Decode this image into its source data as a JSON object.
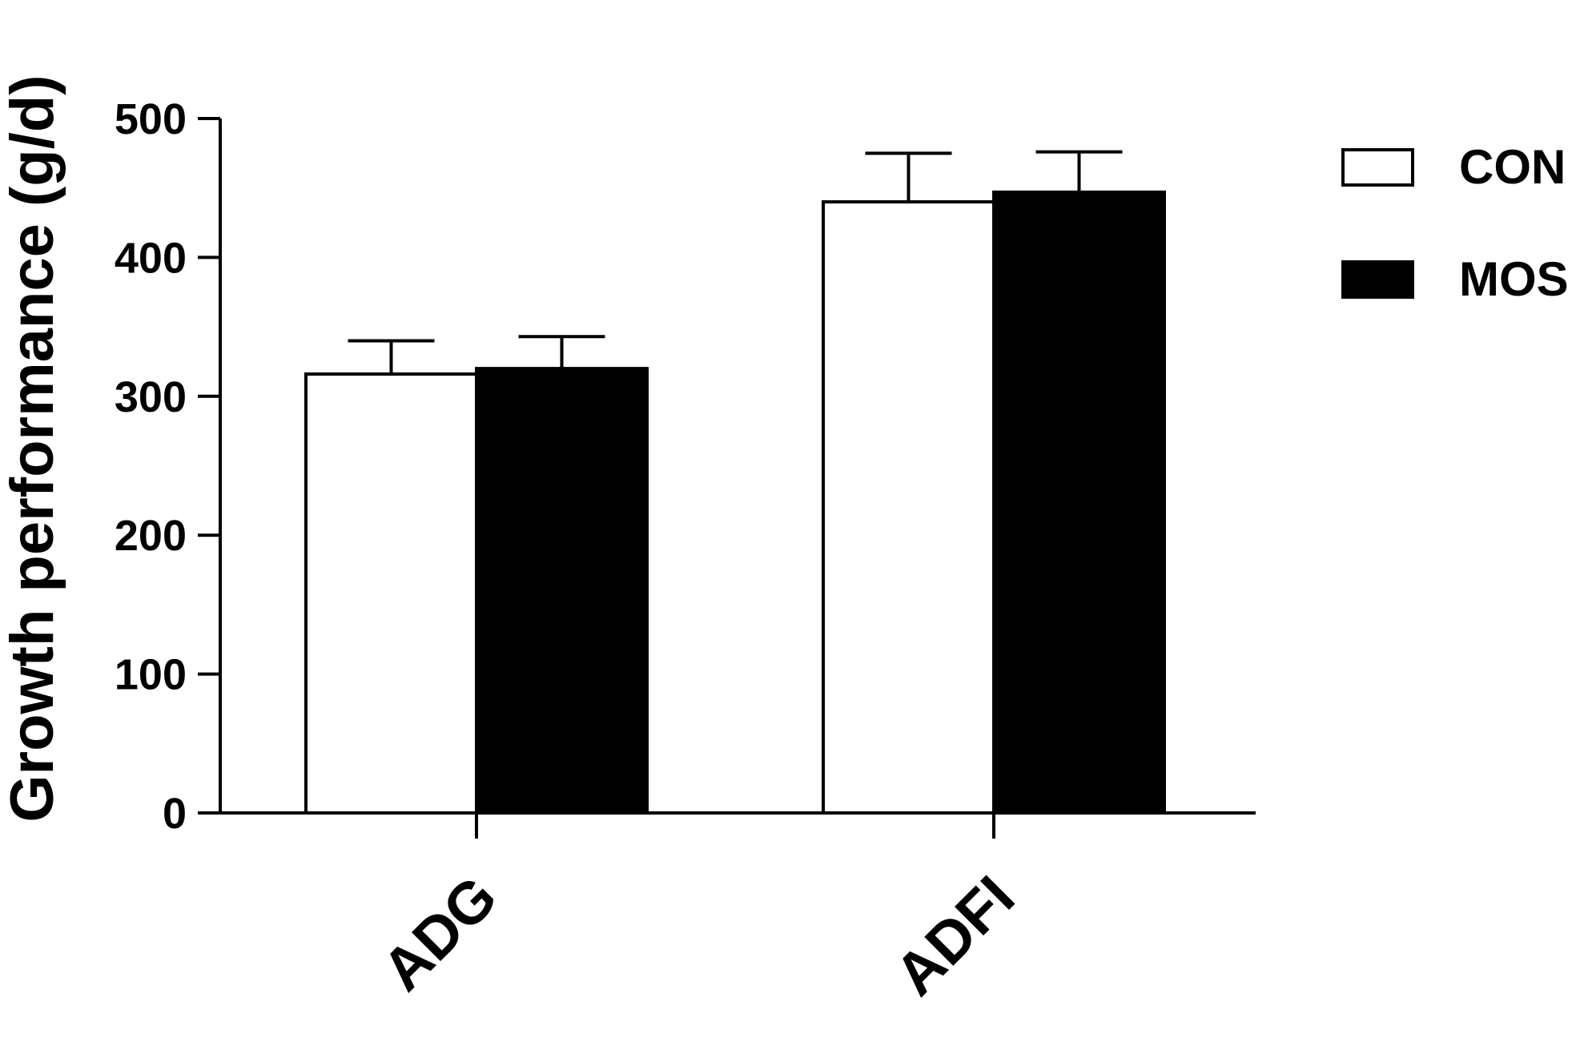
{
  "chart_data": {
    "type": "bar",
    "categories": [
      "ADG",
      "ADFI"
    ],
    "series": [
      {
        "name": "CON",
        "values": [
          316,
          440
        ],
        "error": [
          24,
          35
        ],
        "fill": "#ffffff",
        "stroke": "#000000"
      },
      {
        "name": "MOS",
        "values": [
          320,
          447
        ],
        "error": [
          23,
          29
        ],
        "fill": "#000000",
        "stroke": "#000000"
      }
    ],
    "ylabel": "Growth performance (g/d)",
    "xlabel": "",
    "ylim": [
      0,
      500
    ],
    "yticks": [
      "0",
      "100",
      "200",
      "300",
      "400",
      "500"
    ],
    "grid": false,
    "legend_position": "top-right",
    "x_tick_label_rotation_deg": -45
  }
}
